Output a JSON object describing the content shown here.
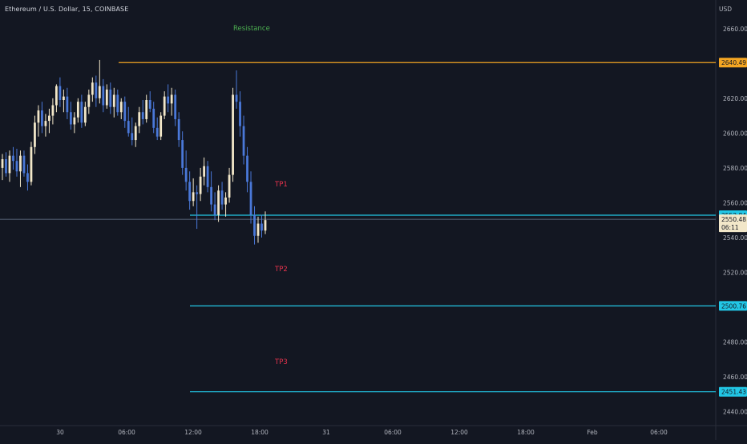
{
  "header": {
    "symbol": "Ethereum / U.S. Dollar, 15, COINBASE",
    "currency": "USD"
  },
  "colors": {
    "background": "#131722",
    "up_candle": "#f2e7c9",
    "down_candle": "#4a78d8",
    "resistance_line": "#f5a623",
    "tp_line": "#22c7e6",
    "resistance_text": "#4caf50",
    "tp_text": "#e8334d",
    "axis_text": "#b2b5be",
    "last_price_line": "#6f7d95"
  },
  "chart_data": {
    "type": "candlestick",
    "x_ticks": [
      "30",
      "06:00",
      "12:00",
      "18:00",
      "31",
      "06:00",
      "12:00",
      "18:00",
      "Feb",
      "06:00"
    ],
    "y_ticks": [
      "2660.00",
      "2640.00",
      "2620.00",
      "2600.00",
      "2580.00",
      "2560.00",
      "2540.00",
      "2520.00",
      "2500.00",
      "2480.00",
      "2460.00",
      "2440.00"
    ],
    "y_tick_values": [
      2660,
      2640,
      2620,
      2600,
      2580,
      2560,
      2540,
      2520,
      2500,
      2480,
      2460,
      2440
    ],
    "ylim": [
      2432,
      2670
    ],
    "levels": [
      {
        "name": "Resistance",
        "value": 2640.49,
        "label": "2640.49",
        "kind": "resistance"
      },
      {
        "name": "TP1",
        "value": 2552.84,
        "label": "2552.84",
        "kind": "tp"
      },
      {
        "name": "TP2",
        "value": 2500.76,
        "label": "2500.76",
        "kind": "tp"
      },
      {
        "name": "TP3",
        "value": 2451.43,
        "label": "2451.43",
        "kind": "tp"
      }
    ],
    "last_price": {
      "value": 2550.48,
      "label": "2550.48",
      "countdown": "06:11"
    },
    "candles": [
      {
        "o": 2580,
        "h": 2588,
        "l": 2573,
        "c": 2585
      },
      {
        "o": 2585,
        "h": 2589,
        "l": 2575,
        "c": 2577
      },
      {
        "o": 2577,
        "h": 2590,
        "l": 2572,
        "c": 2587
      },
      {
        "o": 2587,
        "h": 2592,
        "l": 2579,
        "c": 2584
      },
      {
        "o": 2584,
        "h": 2591,
        "l": 2575,
        "c": 2578
      },
      {
        "o": 2578,
        "h": 2590,
        "l": 2569,
        "c": 2587
      },
      {
        "o": 2587,
        "h": 2590,
        "l": 2575,
        "c": 2577
      },
      {
        "o": 2577,
        "h": 2582,
        "l": 2567,
        "c": 2572
      },
      {
        "o": 2572,
        "h": 2595,
        "l": 2570,
        "c": 2592
      },
      {
        "o": 2592,
        "h": 2610,
        "l": 2588,
        "c": 2606
      },
      {
        "o": 2606,
        "h": 2616,
        "l": 2598,
        "c": 2613
      },
      {
        "o": 2613,
        "h": 2618,
        "l": 2600,
        "c": 2604
      },
      {
        "o": 2604,
        "h": 2611,
        "l": 2598,
        "c": 2607
      },
      {
        "o": 2607,
        "h": 2614,
        "l": 2600,
        "c": 2610
      },
      {
        "o": 2610,
        "h": 2620,
        "l": 2605,
        "c": 2616
      },
      {
        "o": 2616,
        "h": 2628,
        "l": 2612,
        "c": 2627
      },
      {
        "o": 2627,
        "h": 2632,
        "l": 2615,
        "c": 2619
      },
      {
        "o": 2619,
        "h": 2625,
        "l": 2612,
        "c": 2621
      },
      {
        "o": 2621,
        "h": 2626,
        "l": 2608,
        "c": 2612
      },
      {
        "o": 2612,
        "h": 2618,
        "l": 2602,
        "c": 2605
      },
      {
        "o": 2605,
        "h": 2612,
        "l": 2600,
        "c": 2609
      },
      {
        "o": 2609,
        "h": 2620,
        "l": 2606,
        "c": 2618
      },
      {
        "o": 2618,
        "h": 2622,
        "l": 2603,
        "c": 2606
      },
      {
        "o": 2606,
        "h": 2618,
        "l": 2604,
        "c": 2615
      },
      {
        "o": 2615,
        "h": 2625,
        "l": 2611,
        "c": 2622
      },
      {
        "o": 2622,
        "h": 2632,
        "l": 2618,
        "c": 2629
      },
      {
        "o": 2629,
        "h": 2633,
        "l": 2615,
        "c": 2620
      },
      {
        "o": 2620,
        "h": 2642,
        "l": 2617,
        "c": 2627
      },
      {
        "o": 2627,
        "h": 2631,
        "l": 2612,
        "c": 2616
      },
      {
        "o": 2616,
        "h": 2628,
        "l": 2614,
        "c": 2625
      },
      {
        "o": 2625,
        "h": 2629,
        "l": 2611,
        "c": 2615
      },
      {
        "o": 2615,
        "h": 2626,
        "l": 2609,
        "c": 2622
      },
      {
        "o": 2622,
        "h": 2625,
        "l": 2610,
        "c": 2612
      },
      {
        "o": 2612,
        "h": 2620,
        "l": 2608,
        "c": 2618
      },
      {
        "o": 2618,
        "h": 2621,
        "l": 2603,
        "c": 2607
      },
      {
        "o": 2607,
        "h": 2615,
        "l": 2598,
        "c": 2600
      },
      {
        "o": 2600,
        "h": 2609,
        "l": 2593,
        "c": 2596
      },
      {
        "o": 2596,
        "h": 2606,
        "l": 2592,
        "c": 2604
      },
      {
        "o": 2604,
        "h": 2615,
        "l": 2600,
        "c": 2612
      },
      {
        "o": 2612,
        "h": 2619,
        "l": 2605,
        "c": 2608
      },
      {
        "o": 2608,
        "h": 2622,
        "l": 2606,
        "c": 2619
      },
      {
        "o": 2619,
        "h": 2624,
        "l": 2612,
        "c": 2614
      },
      {
        "o": 2614,
        "h": 2618,
        "l": 2600,
        "c": 2603
      },
      {
        "o": 2603,
        "h": 2609,
        "l": 2596,
        "c": 2598
      },
      {
        "o": 2598,
        "h": 2612,
        "l": 2596,
        "c": 2610
      },
      {
        "o": 2610,
        "h": 2624,
        "l": 2608,
        "c": 2621
      },
      {
        "o": 2621,
        "h": 2628,
        "l": 2612,
        "c": 2617
      },
      {
        "o": 2617,
        "h": 2626,
        "l": 2610,
        "c": 2622
      },
      {
        "o": 2622,
        "h": 2625,
        "l": 2604,
        "c": 2608
      },
      {
        "o": 2608,
        "h": 2612,
        "l": 2592,
        "c": 2596
      },
      {
        "o": 2596,
        "h": 2601,
        "l": 2576,
        "c": 2580
      },
      {
        "o": 2580,
        "h": 2590,
        "l": 2567,
        "c": 2572
      },
      {
        "o": 2572,
        "h": 2578,
        "l": 2556,
        "c": 2561
      },
      {
        "o": 2561,
        "h": 2574,
        "l": 2558,
        "c": 2566
      },
      {
        "o": 2566,
        "h": 2570,
        "l": 2545,
        "c": 2565
      },
      {
        "o": 2565,
        "h": 2580,
        "l": 2561,
        "c": 2575
      },
      {
        "o": 2575,
        "h": 2586,
        "l": 2570,
        "c": 2581
      },
      {
        "o": 2581,
        "h": 2584,
        "l": 2566,
        "c": 2569
      },
      {
        "o": 2569,
        "h": 2578,
        "l": 2555,
        "c": 2559
      },
      {
        "o": 2559,
        "h": 2566,
        "l": 2550,
        "c": 2553
      },
      {
        "o": 2553,
        "h": 2570,
        "l": 2549,
        "c": 2567
      },
      {
        "o": 2567,
        "h": 2572,
        "l": 2556,
        "c": 2559
      },
      {
        "o": 2559,
        "h": 2566,
        "l": 2552,
        "c": 2563
      },
      {
        "o": 2563,
        "h": 2580,
        "l": 2560,
        "c": 2576
      },
      {
        "o": 2576,
        "h": 2626,
        "l": 2572,
        "c": 2622
      },
      {
        "o": 2622,
        "h": 2636,
        "l": 2614,
        "c": 2618
      },
      {
        "o": 2618,
        "h": 2624,
        "l": 2598,
        "c": 2604
      },
      {
        "o": 2604,
        "h": 2610,
        "l": 2582,
        "c": 2587
      },
      {
        "o": 2587,
        "h": 2592,
        "l": 2566,
        "c": 2572
      },
      {
        "o": 2572,
        "h": 2578,
        "l": 2548,
        "c": 2553
      },
      {
        "o": 2553,
        "h": 2558,
        "l": 2536,
        "c": 2541
      },
      {
        "o": 2541,
        "h": 2552,
        "l": 2537,
        "c": 2548
      },
      {
        "o": 2548,
        "h": 2553,
        "l": 2540,
        "c": 2544
      },
      {
        "o": 2544,
        "h": 2555,
        "l": 2542,
        "c": 2550
      }
    ]
  }
}
